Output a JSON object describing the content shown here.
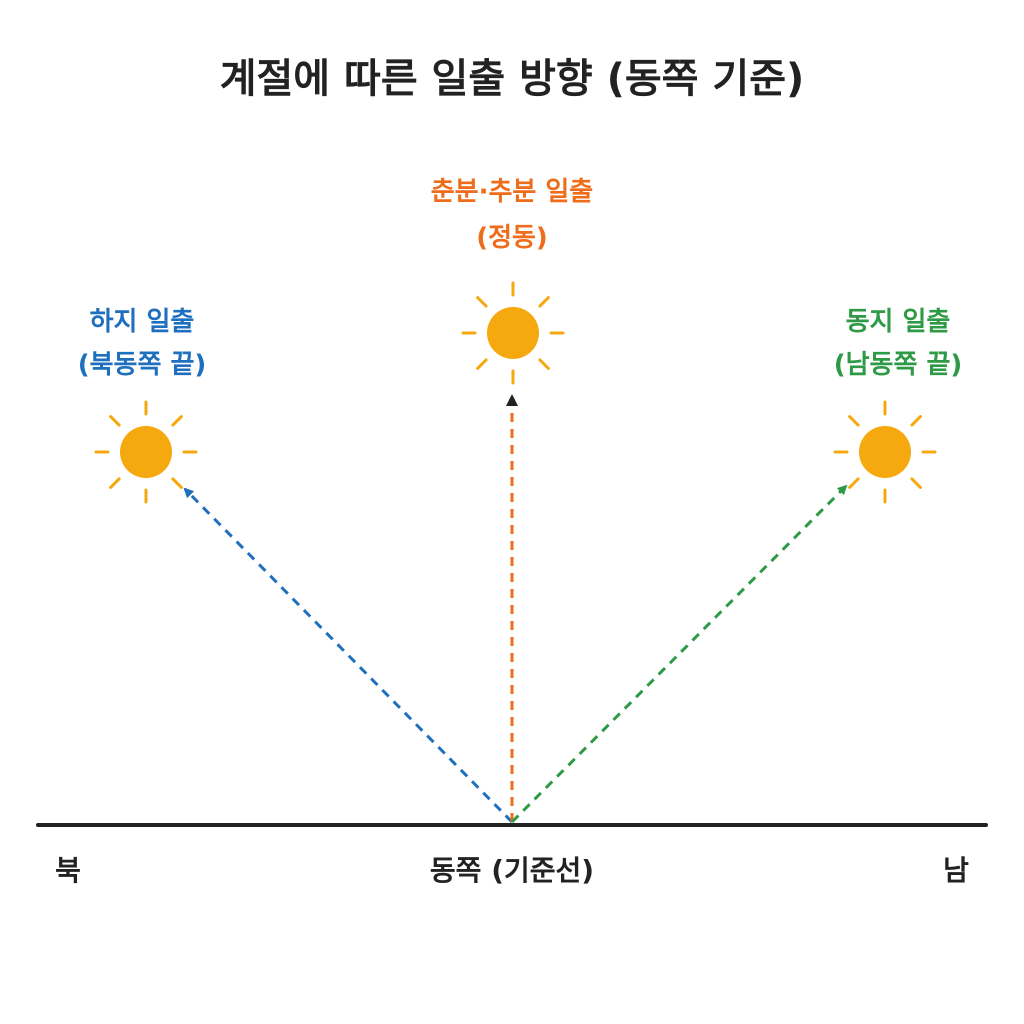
{
  "title": "계절에 따른 일출 방향 (동쪽 기준)",
  "colors": {
    "summer": "#1f6fbf",
    "equinox": "#ef6c1a",
    "winter": "#2e9a46",
    "sun": "#f5a90f",
    "ground": "#222222",
    "center_arrowhead": "#222222"
  },
  "sunrises": {
    "summer": {
      "line1": "하지 일출",
      "line2": "(북동쪽 끝)"
    },
    "equinox": {
      "line1": "춘분·추분 일출",
      "line2": "(정동)"
    },
    "winter": {
      "line1": "동지 일출",
      "line2": "(남동쪽 끝)"
    }
  },
  "ground": {
    "left_label": "북",
    "center_label": "동쪽 (기준선)",
    "right_label": "남"
  }
}
